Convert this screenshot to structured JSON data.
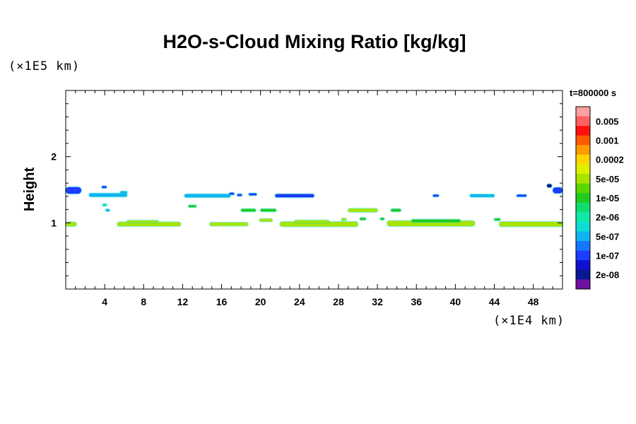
{
  "chart_data": {
    "type": "heatmap",
    "title": "H2O-s-Cloud Mixing Ratio [kg/kg]",
    "ylabel": "Height",
    "yunit": "(×1E5 km)",
    "xunit": "(×1E4 km)",
    "time": "t=800000 s",
    "xlim": [
      0,
      51
    ],
    "ylim": [
      0,
      3
    ],
    "xticks": [
      4,
      8,
      12,
      16,
      20,
      24,
      28,
      32,
      36,
      40,
      44,
      48
    ],
    "yticks": [
      1,
      2
    ],
    "colorbar": {
      "labels": [
        "0.005",
        "0.001",
        "0.0002",
        "5e-05",
        "1e-05",
        "2e-06",
        "5e-07",
        "1e-07",
        "2e-08"
      ],
      "colors": [
        "#ffa0a0",
        "#ff6060",
        "#ff1010",
        "#ff5a00",
        "#ff9a00",
        "#ffd400",
        "#e0ee00",
        "#a8e400",
        "#58d800",
        "#20cc20",
        "#10dd70",
        "#10e8a8",
        "#10dcd4",
        "#10b4f0",
        "#1478ff",
        "#1c3cff",
        "#1010d0",
        "#081890",
        "#7010a0"
      ]
    },
    "cloud_bands": [
      {
        "x0": 0.0,
        "x1": 1.1,
        "y": 0.98,
        "h": 0.06,
        "level": "5e-05"
      },
      {
        "x0": 0.0,
        "x1": 1.6,
        "y": 1.49,
        "h": 0.1,
        "level": "1e-07"
      },
      {
        "x0": 2.4,
        "x1": 6.3,
        "y": 1.42,
        "h": 0.05,
        "level": "5e-07"
      },
      {
        "x0": 3.7,
        "x1": 4.2,
        "y": 1.54,
        "h": 0.03,
        "level": "1e-07"
      },
      {
        "x0": 5.6,
        "x1": 6.3,
        "y": 1.46,
        "h": 0.03,
        "level": "5e-07"
      },
      {
        "x0": 3.8,
        "x1": 4.2,
        "y": 1.27,
        "h": 0.03,
        "level": "2e-06"
      },
      {
        "x0": 4.1,
        "x1": 4.5,
        "y": 1.19,
        "h": 0.03,
        "level": "5e-07"
      },
      {
        "x0": 5.3,
        "x1": 11.8,
        "y": 0.98,
        "h": 0.06,
        "level": "5e-05"
      },
      {
        "x0": 6.3,
        "x1": 9.5,
        "y": 1.02,
        "h": 0.03,
        "level": "5e-05"
      },
      {
        "x0": 12.2,
        "x1": 16.9,
        "y": 1.41,
        "h": 0.05,
        "level": "5e-07"
      },
      {
        "x0": 16.8,
        "x1": 17.3,
        "y": 1.44,
        "h": 0.03,
        "level": "1e-07"
      },
      {
        "x0": 17.6,
        "x1": 18.1,
        "y": 1.42,
        "h": 0.03,
        "level": "1e-07"
      },
      {
        "x0": 18.8,
        "x1": 19.6,
        "y": 1.43,
        "h": 0.03,
        "level": "1e-07"
      },
      {
        "x0": 12.6,
        "x1": 13.4,
        "y": 1.25,
        "h": 0.03,
        "level": "1e-05"
      },
      {
        "x0": 14.8,
        "x1": 18.7,
        "y": 0.98,
        "h": 0.05,
        "level": "5e-05"
      },
      {
        "x0": 18.0,
        "x1": 19.5,
        "y": 1.19,
        "h": 0.04,
        "level": "1e-05"
      },
      {
        "x0": 20.0,
        "x1": 21.6,
        "y": 1.19,
        "h": 0.04,
        "level": "1e-05"
      },
      {
        "x0": 19.9,
        "x1": 21.2,
        "y": 1.04,
        "h": 0.04,
        "level": "5e-05"
      },
      {
        "x0": 21.5,
        "x1": 25.5,
        "y": 1.41,
        "h": 0.05,
        "level": "1e-07"
      },
      {
        "x0": 22.0,
        "x1": 30.0,
        "y": 0.98,
        "h": 0.07,
        "level": "5e-05"
      },
      {
        "x0": 23.5,
        "x1": 27.0,
        "y": 1.02,
        "h": 0.04,
        "level": "5e-05"
      },
      {
        "x0": 29.0,
        "x1": 32.0,
        "y": 1.19,
        "h": 0.05,
        "level": "5e-05"
      },
      {
        "x0": 28.3,
        "x1": 28.8,
        "y": 1.05,
        "h": 0.03,
        "level": "5e-05"
      },
      {
        "x0": 30.2,
        "x1": 30.8,
        "y": 1.06,
        "h": 0.03,
        "level": "1e-05"
      },
      {
        "x0": 32.3,
        "x1": 32.7,
        "y": 1.06,
        "h": 0.03,
        "level": "1e-05"
      },
      {
        "x0": 33.4,
        "x1": 34.4,
        "y": 1.19,
        "h": 0.04,
        "level": "1e-05"
      },
      {
        "x0": 33.0,
        "x1": 42.0,
        "y": 0.99,
        "h": 0.08,
        "level": "5e-05"
      },
      {
        "x0": 35.5,
        "x1": 40.5,
        "y": 1.03,
        "h": 0.04,
        "level": "1e-05"
      },
      {
        "x0": 37.7,
        "x1": 38.3,
        "y": 1.41,
        "h": 0.03,
        "level": "1e-07"
      },
      {
        "x0": 41.5,
        "x1": 44.0,
        "y": 1.41,
        "h": 0.04,
        "level": "5e-07"
      },
      {
        "x0": 44.5,
        "x1": 51.0,
        "y": 0.98,
        "h": 0.07,
        "level": "5e-05"
      },
      {
        "x0": 44.0,
        "x1": 44.6,
        "y": 1.05,
        "h": 0.03,
        "level": "1e-05"
      },
      {
        "x0": 46.3,
        "x1": 47.3,
        "y": 1.41,
        "h": 0.03,
        "level": "1e-07"
      },
      {
        "x0": 50.0,
        "x1": 51.0,
        "y": 1.49,
        "h": 0.09,
        "level": "1e-07"
      },
      {
        "x0": 49.4,
        "x1": 49.9,
        "y": 1.56,
        "h": 0.05,
        "level": "2e-08"
      }
    ]
  }
}
